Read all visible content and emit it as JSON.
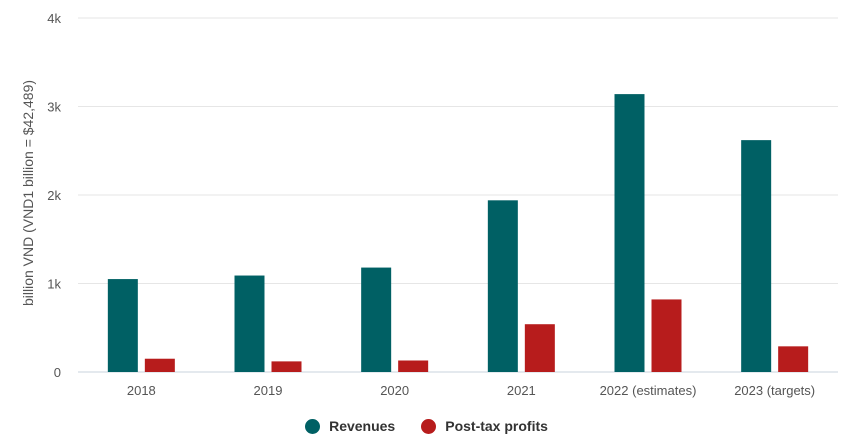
{
  "chart_data": {
    "type": "bar",
    "categories": [
      "2018",
      "2019",
      "2020",
      "2021",
      "2022 (estimates)",
      "2023 (targets)"
    ],
    "series": [
      {
        "name": "Revenues",
        "color": "#006064",
        "values": [
          1050,
          1090,
          1180,
          1940,
          3140,
          2620
        ]
      },
      {
        "name": "Post-tax profits",
        "color": "#b71c1c",
        "values": [
          150,
          120,
          130,
          540,
          820,
          290
        ]
      }
    ],
    "ylabel": "billion VND (VND1 billion = $42,489)",
    "ylim": [
      0,
      4000
    ],
    "yticks": [
      0,
      1000,
      2000,
      3000,
      4000
    ],
    "ytick_labels": [
      "0",
      "1k",
      "2k",
      "3k",
      "4k"
    ],
    "grid": true,
    "legend_position": "bottom-center"
  }
}
